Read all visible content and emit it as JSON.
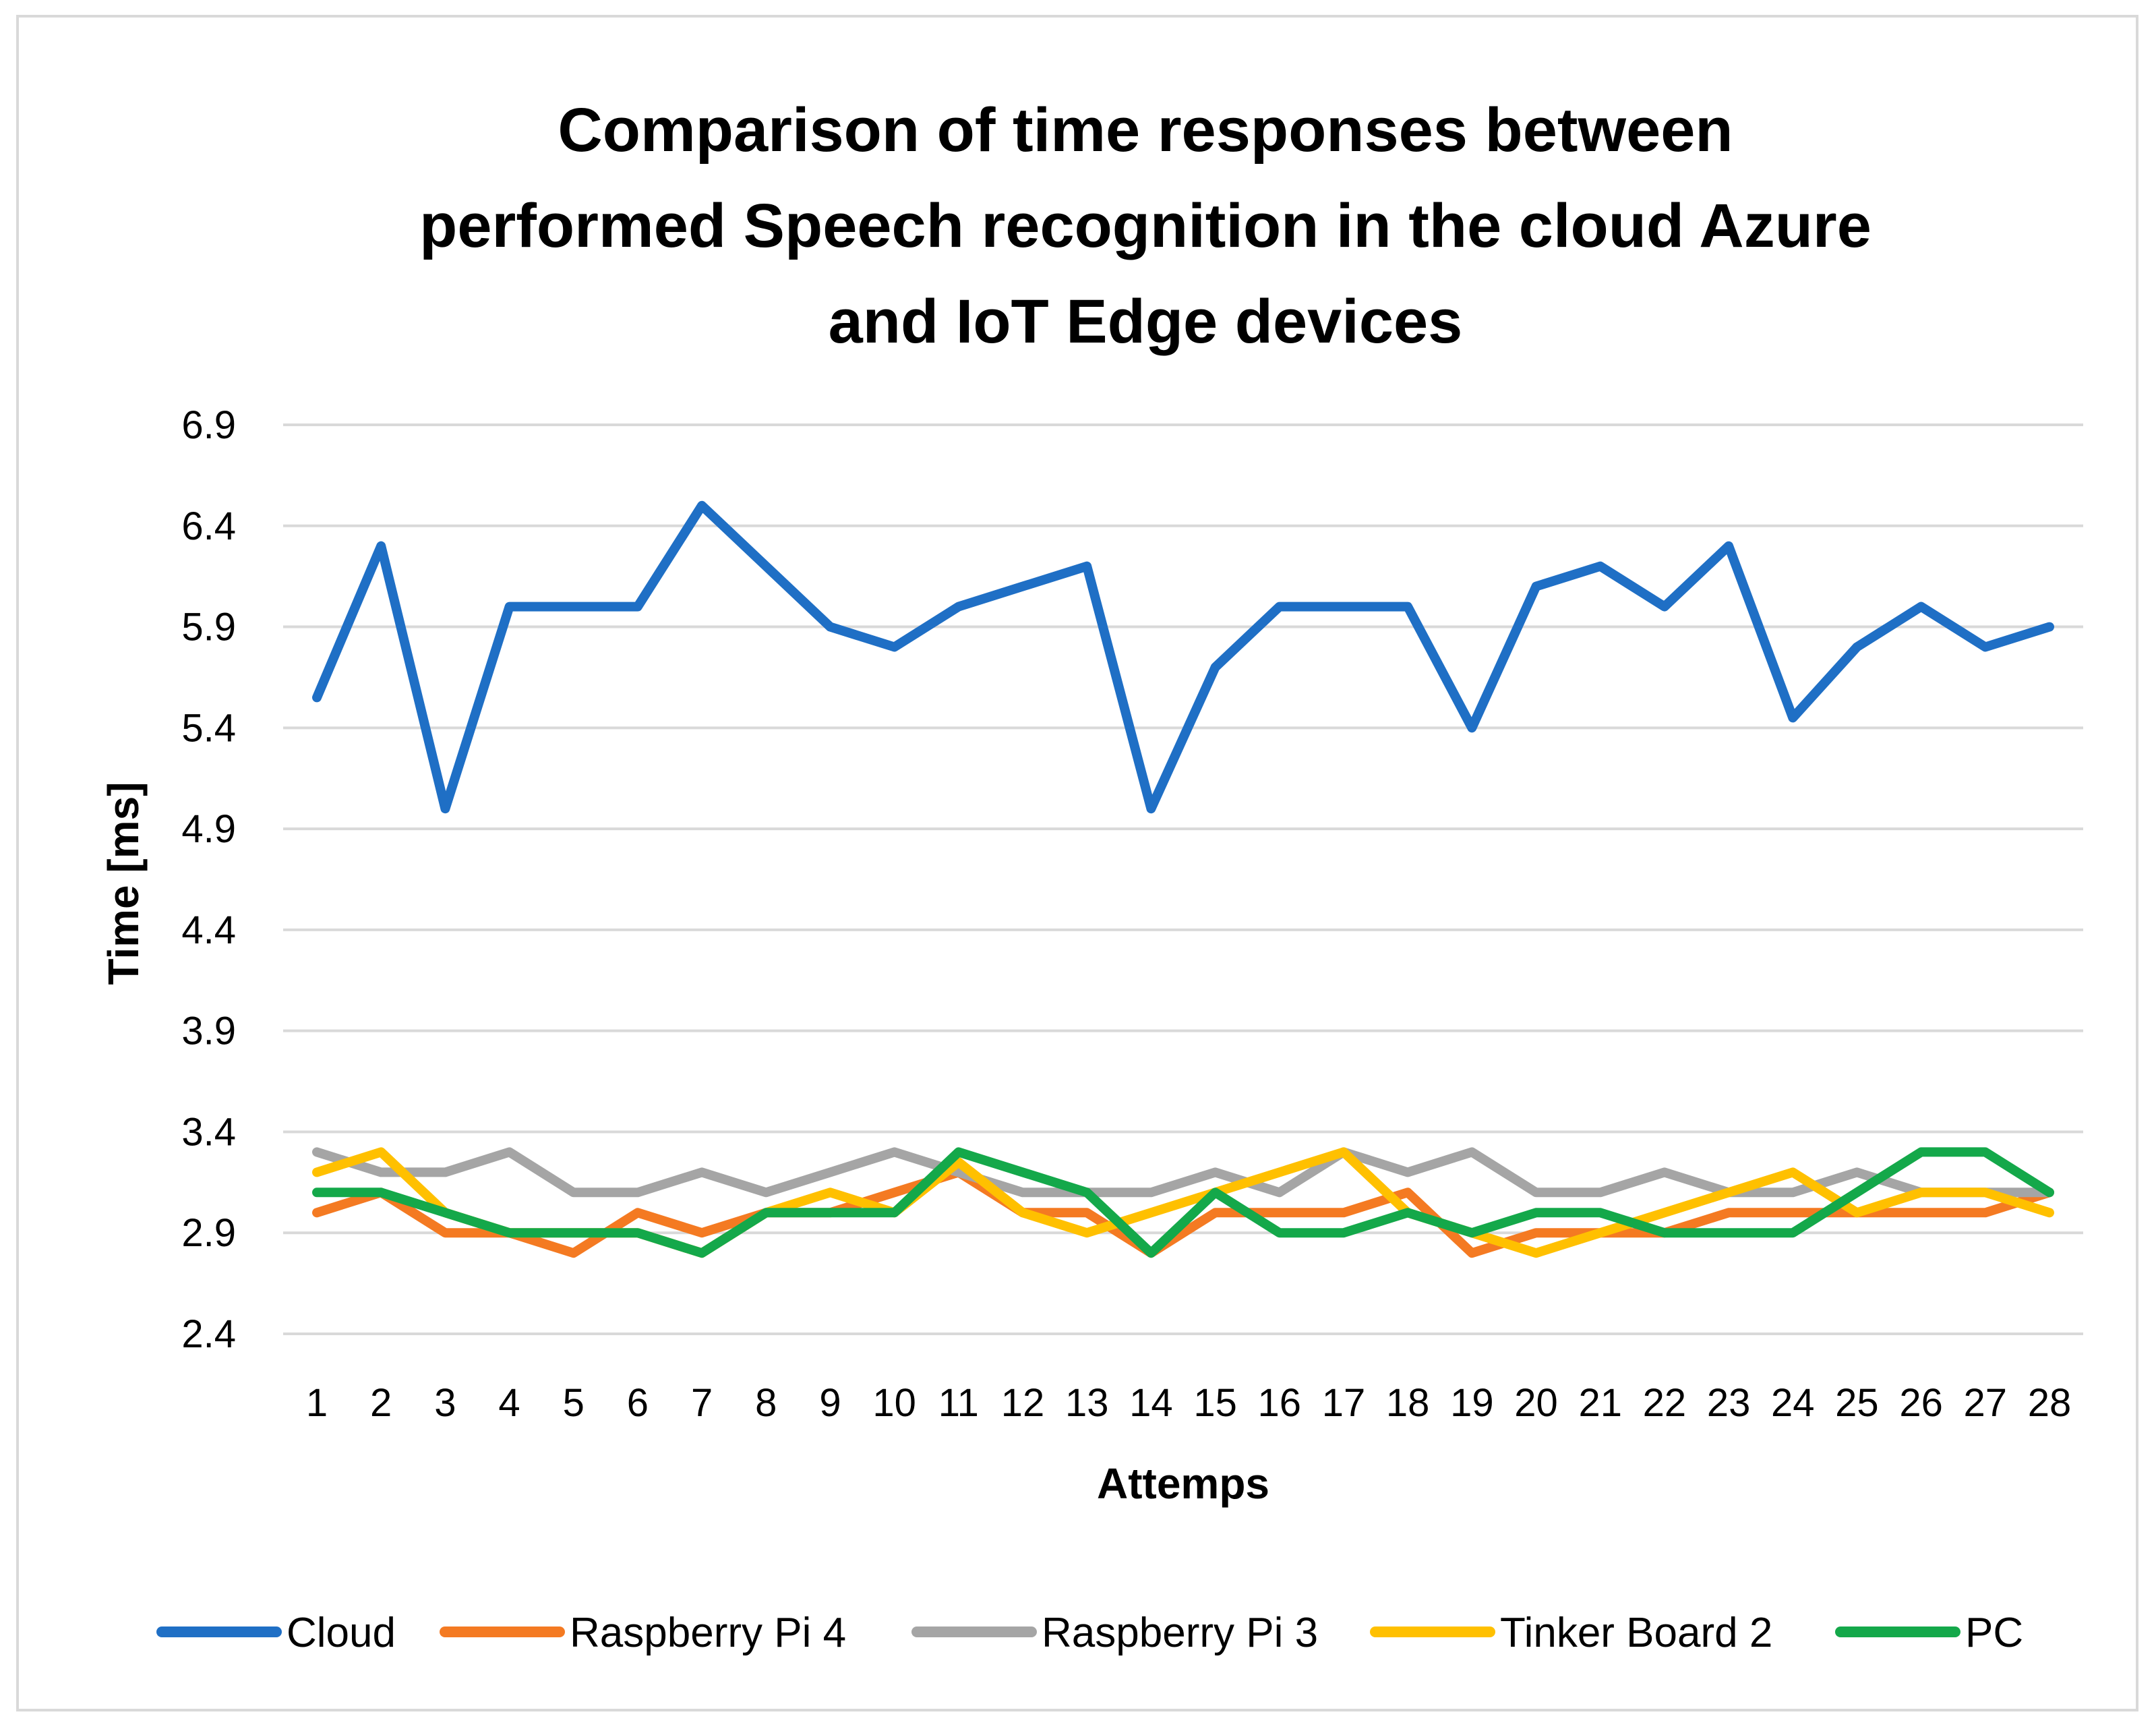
{
  "chart_data": {
    "type": "line",
    "title": [
      "Comparison of time responses between",
      "performed Speech recognition in the cloud Azure",
      "and IoT Edge devices"
    ],
    "xlabel": "Attemps",
    "ylabel": "Time  [ms]",
    "ylim": [
      2.4,
      6.9
    ],
    "yticks": [
      "2.4",
      "2.9",
      "3.4",
      "3.9",
      "4.4",
      "4.9",
      "5.4",
      "5.9",
      "6.4",
      "6.9"
    ],
    "categories": [
      "1",
      "2",
      "3",
      "4",
      "5",
      "6",
      "7",
      "8",
      "9",
      "10",
      "11",
      "12",
      "13",
      "14",
      "15",
      "16",
      "17",
      "18",
      "19",
      "20",
      "21",
      "22",
      "23",
      "24",
      "25",
      "26",
      "27",
      "28"
    ],
    "grid": true,
    "legend_position": "bottom",
    "series": [
      {
        "name": "Cloud",
        "color": "#1f6fc5",
        "values": [
          5.55,
          6.3,
          5.0,
          6.0,
          6.0,
          6.0,
          6.5,
          6.2,
          5.9,
          5.8,
          6.0,
          6.1,
          6.2,
          5.0,
          5.7,
          6.0,
          6.0,
          6.0,
          5.4,
          6.1,
          6.2,
          6.0,
          6.3,
          5.45,
          5.8,
          6.0,
          5.8,
          5.9
        ]
      },
      {
        "name": "Raspberry Pi 4",
        "color": "#f47a22",
        "values": [
          3.0,
          3.1,
          2.9,
          2.9,
          2.8,
          3.0,
          2.9,
          3.0,
          3.0,
          3.1,
          3.2,
          3.0,
          3.0,
          2.8,
          3.0,
          3.0,
          3.0,
          3.1,
          2.8,
          2.9,
          2.9,
          2.9,
          3.0,
          3.0,
          3.0,
          3.0,
          3.0,
          3.1
        ]
      },
      {
        "name": "Raspberry Pi 3",
        "color": "#a5a5a5",
        "values": [
          3.3,
          3.2,
          3.2,
          3.3,
          3.1,
          3.1,
          3.2,
          3.1,
          3.2,
          3.3,
          3.2,
          3.1,
          3.1,
          3.1,
          3.2,
          3.1,
          3.3,
          3.2,
          3.3,
          3.1,
          3.1,
          3.2,
          3.1,
          3.1,
          3.2,
          3.1,
          3.1,
          3.1
        ]
      },
      {
        "name": "Tinker Board 2",
        "color": "#ffc000",
        "values": [
          3.2,
          3.3,
          3.0,
          2.9,
          2.9,
          2.9,
          2.8,
          3.0,
          3.1,
          3.0,
          3.25,
          3.0,
          2.9,
          3.0,
          3.1,
          3.2,
          3.3,
          3.0,
          2.9,
          2.8,
          2.9,
          3.0,
          3.1,
          3.2,
          3.0,
          3.1,
          3.1,
          3.0
        ]
      },
      {
        "name": "PC",
        "color": "#14a84a",
        "values": [
          3.1,
          3.1,
          3.0,
          2.9,
          2.9,
          2.9,
          2.8,
          3.0,
          3.0,
          3.0,
          3.3,
          3.2,
          3.1,
          2.8,
          3.1,
          2.9,
          2.9,
          3.0,
          2.9,
          3.0,
          3.0,
          2.9,
          2.9,
          2.9,
          3.1,
          3.3,
          3.3,
          3.1
        ]
      }
    ]
  }
}
